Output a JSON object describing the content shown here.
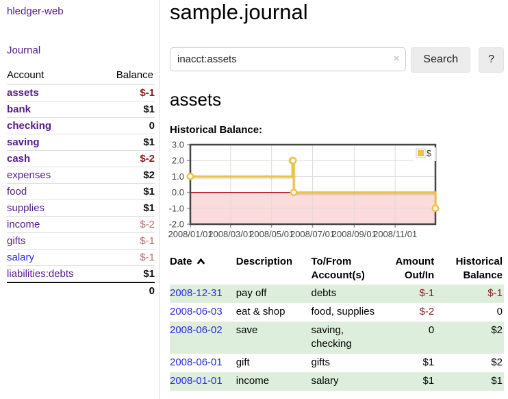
{
  "app": {
    "brand": "hledger-web",
    "nav_journal_label": "Journal"
  },
  "sidebar": {
    "table_headers": {
      "account": "Account",
      "balance": "Balance"
    },
    "accounts": [
      {
        "name": "assets",
        "balance": "$-1",
        "indent": 1,
        "bold": true,
        "balance_style": "neg-strong",
        "blue": false
      },
      {
        "name": "bank",
        "balance": "$1",
        "indent": 2,
        "bold": true,
        "balance_style": "pos",
        "blue": false
      },
      {
        "name": "checking",
        "balance": "0",
        "indent": 3,
        "bold": true,
        "balance_style": "pos",
        "blue": false
      },
      {
        "name": "saving",
        "balance": "$1",
        "indent": 3,
        "bold": true,
        "balance_style": "pos",
        "blue": false
      },
      {
        "name": "cash",
        "balance": "$-2",
        "indent": 2,
        "bold": true,
        "balance_style": "neg-strong",
        "blue": false
      },
      {
        "name": "expenses",
        "balance": "$2",
        "indent": 1,
        "bold": false,
        "balance_style": "pos",
        "blue": false
      },
      {
        "name": "food",
        "balance": "$1",
        "indent": 2,
        "bold": false,
        "balance_style": "pos",
        "blue": false
      },
      {
        "name": "supplies",
        "balance": "$1",
        "indent": 2,
        "bold": false,
        "balance_style": "pos",
        "blue": false
      },
      {
        "name": "income",
        "balance": "$-2",
        "indent": 1,
        "bold": false,
        "balance_style": "neg-soft",
        "blue": false
      },
      {
        "name": "gifts",
        "balance": "$-1",
        "indent": 2,
        "bold": false,
        "balance_style": "neg-soft",
        "blue": false
      },
      {
        "name": "salary",
        "balance": "$-1",
        "indent": 2,
        "bold": false,
        "balance_style": "neg-soft",
        "blue": true
      },
      {
        "name": "liabilities:debts",
        "balance": "$1",
        "indent": 1,
        "bold": false,
        "balance_style": "pos",
        "blue": false
      }
    ],
    "total": "0"
  },
  "main": {
    "title": "sample.journal",
    "search": {
      "value": "inacct:assets",
      "clear_icon": "×",
      "search_button_label": "Search",
      "help_button_label": "?"
    },
    "account_heading": "assets",
    "chart_title": "Historical Balance:"
  },
  "chart_data": {
    "type": "line",
    "style": "steps",
    "title": "Historical Balance",
    "series": [
      {
        "name": "$",
        "color": "#edc240",
        "points": [
          [
            "2008-01-01",
            1
          ],
          [
            "2008-06-01",
            2
          ],
          [
            "2008-06-02",
            2
          ],
          [
            "2008-06-03",
            0
          ],
          [
            "2008-12-31",
            -1
          ]
        ]
      }
    ],
    "x_range": [
      "2008-01-01",
      "2008-12-31"
    ],
    "ylim": [
      -2,
      3
    ],
    "y_ticks": [
      "3.0",
      "2.0",
      "1.0",
      "0.0",
      "-1.0",
      "-2.0"
    ],
    "y_tick_values": [
      3,
      2,
      1,
      0,
      -1,
      -2
    ],
    "x_tick_labels": [
      "2008/01/01",
      "2008/03/01",
      "2008/05/01",
      "2008/07/01",
      "2008/09/01",
      "2008/11/01"
    ],
    "legend": {
      "label": "$",
      "position": "top-right"
    },
    "grid": true,
    "negative_region_fill": "#fbdbdb",
    "zero_line_color": "#a40000",
    "border_color": "#444",
    "grid_color": "#dcdcdc"
  },
  "register": {
    "columns": [
      "Date",
      "Description",
      "To/From Account(s)",
      "Amount Out/In",
      "Historical Balance"
    ],
    "sort": {
      "column": "Date",
      "direction": "ascending"
    },
    "rows": [
      {
        "date": "2008-12-31",
        "description": "pay off",
        "accounts": "debts",
        "amount": "$-1",
        "amount_negative": true,
        "balance": "$-1",
        "balance_negative": true
      },
      {
        "date": "2008-06-03",
        "description": "eat & shop",
        "accounts": "food, supplies",
        "amount": "$-2",
        "amount_negative": true,
        "balance": "0",
        "balance_negative": false
      },
      {
        "date": "2008-06-02",
        "description": "save",
        "accounts": "saving, checking",
        "amount": "0",
        "amount_negative": false,
        "balance": "$2",
        "balance_negative": false
      },
      {
        "date": "2008-06-01",
        "description": "gift",
        "accounts": "gifts",
        "amount": "$1",
        "amount_negative": false,
        "balance": "$2",
        "balance_negative": false
      },
      {
        "date": "2008-01-01",
        "description": "income",
        "accounts": "salary",
        "amount": "$1",
        "amount_negative": false,
        "balance": "$1",
        "balance_negative": false
      }
    ]
  }
}
